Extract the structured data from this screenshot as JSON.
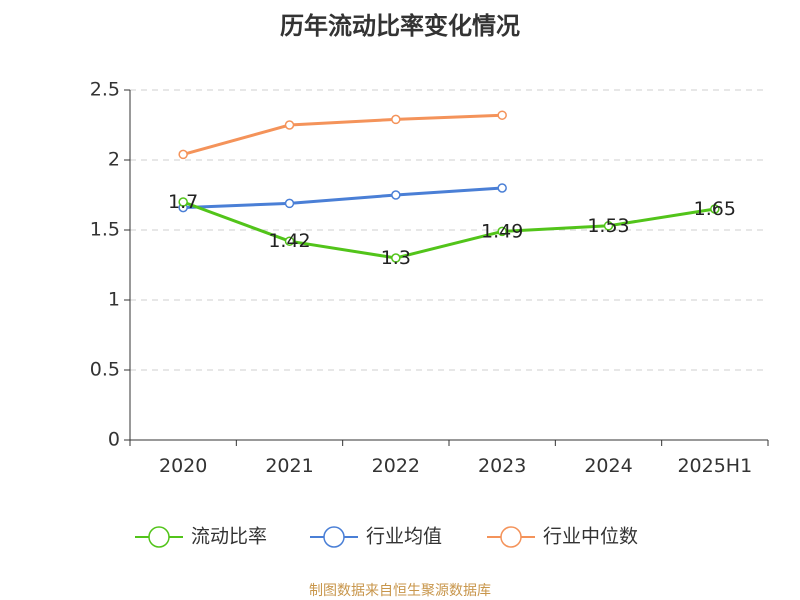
{
  "chart_data": {
    "type": "line",
    "title": "历年流动比率变化情况",
    "categories": [
      "2020",
      "2021",
      "2022",
      "2023",
      "2024",
      "2025H1"
    ],
    "y_ticks": [
      "0",
      "0.5",
      "1",
      "1.5",
      "2",
      "2.5"
    ],
    "ylim": [
      0,
      2.5
    ],
    "xlabel": "",
    "ylabel": "",
    "grid": "horizontal-dashed",
    "legend_position": "bottom",
    "series": [
      {
        "name": "流动比率",
        "color": "#52c41a",
        "values": [
          1.7,
          1.42,
          1.3,
          1.49,
          1.53,
          1.65
        ],
        "labels": [
          "1.7",
          "1.42",
          "1.3",
          "1.49",
          "1.53",
          "1.65"
        ]
      },
      {
        "name": "行业均值",
        "color": "#4a7fd6",
        "values": [
          1.66,
          1.69,
          1.75,
          1.8,
          null,
          null
        ]
      },
      {
        "name": "行业中位数",
        "color": "#f4935a",
        "values": [
          2.04,
          2.25,
          2.29,
          2.32,
          null,
          null
        ]
      }
    ]
  },
  "source_note": "制图数据来自恒生聚源数据库"
}
